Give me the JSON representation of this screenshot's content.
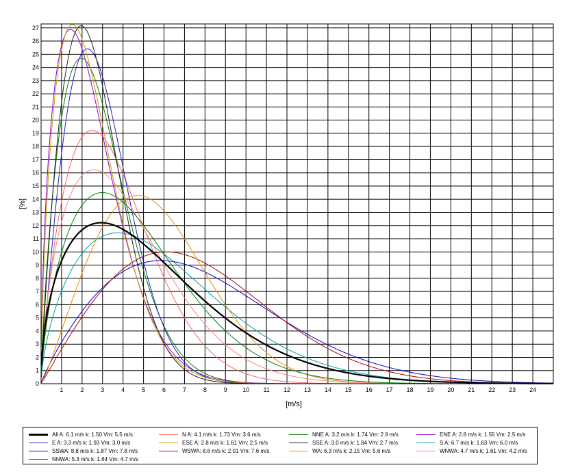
{
  "chart_data": {
    "type": "line",
    "xlabel": "[m/s]",
    "ylabel": "[%]",
    "xlim": [
      0,
      25
    ],
    "ylim": [
      0,
      27.3
    ],
    "x_ticks": [
      1,
      2,
      3,
      4,
      5,
      6,
      7,
      8,
      9,
      10,
      11,
      12,
      13,
      14,
      15,
      16,
      17,
      18,
      19,
      20,
      21,
      22,
      23,
      24
    ],
    "y_ticks": [
      0,
      1,
      2,
      3,
      4,
      5,
      6,
      7,
      8,
      9,
      10,
      11,
      12,
      13,
      14,
      15,
      16,
      17,
      18,
      19,
      20,
      21,
      22,
      23,
      24,
      25,
      26,
      27
    ],
    "grid": true,
    "legend_position": "bottom",
    "series": [
      {
        "name": "All A: 6.1 m/s k: 1.50 Vm: 5.5 m/s",
        "color": "#000000",
        "width": 2.2,
        "A": 6.1,
        "k": 1.5
      },
      {
        "name": "N A: 4.1 m/s k: 1.73 Vm: 3.6 m/s",
        "color": "#ff6060",
        "width": 1,
        "A": 4.1,
        "k": 1.73
      },
      {
        "name": "NNE A: 3.2 m/s k: 1.74 Vm: 2.9 m/s",
        "color": "#008000",
        "width": 1,
        "A": 3.2,
        "k": 1.74
      },
      {
        "name": "ENE A: 2.8 m/s k: 1.55 Vm: 2.5 m/s",
        "color": "#9900cc",
        "width": 1,
        "A": 2.8,
        "k": 1.55
      },
      {
        "name": "E A: 3.3 m/s k: 1.93 Vm: 3.0 m/s",
        "color": "#2020cc",
        "width": 1,
        "A": 3.3,
        "k": 1.93
      },
      {
        "name": "ESE A: 2.8 m/s k: 1.61 Vm: 2.5 m/s",
        "color": "#c8a000",
        "width": 1,
        "A": 2.8,
        "k": 1.61
      },
      {
        "name": "SSE A: 3.0 m/s k: 1.84 Vm: 2.7 m/s",
        "color": "#202020",
        "width": 1,
        "A": 3.0,
        "k": 1.84
      },
      {
        "name": "S A: 6.7 m/s k: 1.63 Vm: 6.0 m/s",
        "color": "#00a0a0",
        "width": 1,
        "A": 6.7,
        "k": 1.63
      },
      {
        "name": "SSWA: 8.8 m/s k: 1.87 Vm: 7.8 m/s",
        "color": "#0000cc",
        "width": 1,
        "A": 8.8,
        "k": 1.87
      },
      {
        "name": "WSWA: 8.6 m/s k: 2.01 Vm: 7.6 m/s",
        "color": "#b00000",
        "width": 1,
        "A": 8.6,
        "k": 2.01
      },
      {
        "name": "WA: 6.3 m/s k: 2.15 Vm: 5.6 m/s",
        "color": "#f08c00",
        "width": 1,
        "A": 6.3,
        "k": 2.15
      },
      {
        "name": "WNWA: 4.7 m/s k: 1.61 Vm: 4.2 m/s",
        "color": "#ff8080",
        "width": 1,
        "A": 4.7,
        "k": 1.61
      },
      {
        "name": "NNWA: 5.3 m/s k: 1.64 Vm: 4.7 m/s",
        "color": "#008000",
        "width": 1,
        "A": 5.3,
        "k": 1.64
      }
    ]
  }
}
